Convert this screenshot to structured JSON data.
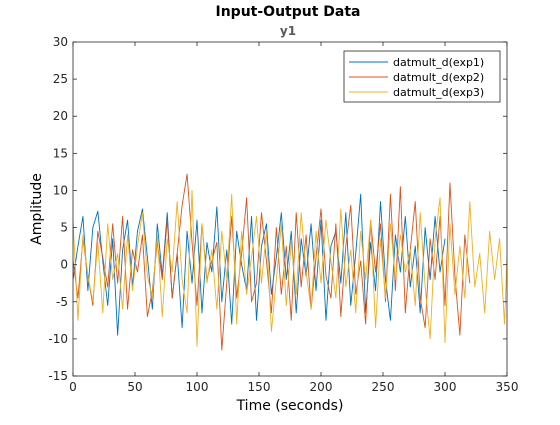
{
  "chart_data": {
    "type": "line",
    "title": "Input-Output Data",
    "subtitle": "y1",
    "xlabel": "Time (seconds)",
    "ylabel": "Amplitude",
    "xlim": [
      0,
      350
    ],
    "ylim": [
      -15,
      30
    ],
    "xticks": [
      0,
      50,
      100,
      150,
      200,
      250,
      300,
      350
    ],
    "yticks": [
      -15,
      -10,
      -5,
      0,
      5,
      10,
      15,
      20,
      25,
      30
    ],
    "grid": false,
    "legend_position": "top-right",
    "series": [
      {
        "name": "datmult_d(exp1)",
        "color": "#0072bd",
        "x": [
          0,
          4,
          8,
          12,
          16,
          20,
          24,
          28,
          32,
          36,
          40,
          44,
          48,
          52,
          56,
          60,
          64,
          68,
          72,
          76,
          80,
          84,
          88,
          92,
          96,
          100,
          104,
          108,
          112,
          116,
          120,
          124,
          128,
          132,
          136,
          140,
          144,
          148,
          152,
          156,
          160,
          164,
          168,
          172,
          176,
          180,
          184,
          188,
          192,
          196,
          200,
          204,
          208,
          212,
          216,
          220,
          224,
          228,
          232,
          236,
          240,
          244,
          248,
          252,
          256,
          260,
          264,
          268,
          272,
          276,
          280,
          284,
          288,
          292,
          296,
          300
        ],
        "values": [
          -2.0,
          2.5,
          6.5,
          -3.5,
          5.0,
          7.2,
          0.5,
          -5.5,
          3.5,
          -9.5,
          2.0,
          6.0,
          -3.0,
          4.5,
          7.5,
          1.0,
          -6.0,
          5.5,
          -1.5,
          7.0,
          -4.5,
          1.5,
          -8.5,
          4.5,
          -2.5,
          6.0,
          -6.5,
          3.0,
          -1.0,
          7.8,
          -5.0,
          2.0,
          -8.0,
          4.5,
          0.0,
          -3.5,
          6.5,
          -7.5,
          2.5,
          5.5,
          -4.0,
          1.0,
          7.0,
          -2.0,
          4.5,
          -6.5,
          3.5,
          -1.5,
          5.5,
          -3.5,
          6.0,
          -7.5,
          2.5,
          4.5,
          -2.5,
          7.0,
          -5.5,
          1.5,
          9.5,
          -6.5,
          3.0,
          -3.5,
          8.5,
          -2.0,
          -7.5,
          4.0,
          -1.0,
          6.5,
          -3.0,
          2.5,
          -6.5,
          5.0,
          -2.0,
          6.5,
          -1.0,
          3.5
        ]
      },
      {
        "name": "datmult_d(exp2)",
        "color": "#d95319",
        "x": [
          0,
          4,
          8,
          12,
          16,
          20,
          24,
          28,
          32,
          36,
          40,
          44,
          48,
          52,
          56,
          60,
          64,
          68,
          72,
          76,
          80,
          84,
          88,
          92,
          96,
          100,
          104,
          108,
          112,
          116,
          120,
          124,
          128,
          132,
          136,
          140,
          144,
          148,
          152,
          156,
          160,
          164,
          168,
          172,
          176,
          180,
          184,
          188,
          192,
          196,
          200,
          204,
          208,
          212,
          216,
          220,
          224,
          228,
          232,
          236,
          240,
          244,
          248,
          252,
          256,
          260,
          264,
          268,
          272,
          276,
          280,
          284,
          288,
          292,
          296,
          300,
          304,
          308,
          312,
          316,
          320
        ],
        "values": [
          0.5,
          -4.5,
          3.5,
          -1.5,
          -5.5,
          4.5,
          1.0,
          -3.0,
          5.5,
          -2.5,
          6.5,
          -6.0,
          2.0,
          -1.0,
          4.0,
          -7.0,
          -3.5,
          3.0,
          -2.0,
          6.0,
          -4.5,
          1.5,
          8.0,
          12.2,
          3.0,
          -5.5,
          5.5,
          -2.0,
          0.5,
          3.0,
          -11.5,
          -2.5,
          6.5,
          -4.5,
          1.5,
          9.0,
          -5.0,
          -2.5,
          7.0,
          0.5,
          -6.5,
          5.0,
          -4.0,
          2.5,
          -7.5,
          7.0,
          -3.0,
          4.0,
          -6.0,
          1.0,
          7.5,
          -1.5,
          -4.5,
          5.5,
          -7.0,
          2.5,
          8.0,
          -4.0,
          0.5,
          -8.0,
          6.0,
          -1.0,
          5.5,
          -5.0,
          9.5,
          -3.5,
          10.5,
          -6.5,
          2.0,
          8.5,
          -4.5,
          -8.5,
          3.5,
          -2.0,
          6.5,
          -5.5,
          11.0,
          -1.5,
          -9.5,
          4.0,
          -2.5
        ]
      },
      {
        "name": "datmult_d(exp3)",
        "color": "#edb120",
        "x": [
          0,
          4,
          8,
          12,
          16,
          20,
          24,
          28,
          32,
          36,
          40,
          44,
          48,
          52,
          56,
          60,
          64,
          68,
          72,
          76,
          80,
          84,
          88,
          92,
          96,
          100,
          104,
          108,
          112,
          116,
          120,
          124,
          128,
          132,
          136,
          140,
          144,
          148,
          152,
          156,
          160,
          164,
          168,
          172,
          176,
          180,
          184,
          188,
          192,
          196,
          200,
          204,
          208,
          212,
          216,
          220,
          224,
          228,
          232,
          236,
          240,
          244,
          248,
          252,
          256,
          260,
          264,
          268,
          272,
          276,
          280,
          284,
          288,
          292,
          296,
          300,
          304,
          308,
          312,
          316,
          320,
          324,
          328,
          332,
          336,
          340,
          344,
          348,
          350
        ],
        "values": [
          6.0,
          -7.5,
          4.0,
          -1.5,
          -5.0,
          3.0,
          -6.5,
          5.5,
          -2.0,
          1.5,
          -6.0,
          4.0,
          -3.5,
          2.5,
          7.0,
          -1.5,
          -4.5,
          4.0,
          -7.0,
          3.5,
          -1.0,
          8.5,
          -2.0,
          -6.5,
          10.0,
          -11.0,
          5.5,
          -2.5,
          2.0,
          -6.0,
          4.5,
          -2.0,
          9.5,
          -8.0,
          4.5,
          -4.0,
          1.0,
          6.5,
          -2.5,
          4.5,
          -9.0,
          -2.0,
          5.5,
          -5.5,
          3.0,
          -4.0,
          7.0,
          -1.0,
          -6.0,
          4.5,
          -2.5,
          6.0,
          0.5,
          -4.5,
          7.5,
          -3.0,
          2.0,
          -6.5,
          4.5,
          -2.0,
          6.0,
          -8.5,
          3.5,
          -4.5,
          5.5,
          -2.0,
          4.0,
          -1.0,
          2.0,
          -5.5,
          7.0,
          -3.0,
          -10.0,
          3.5,
          9.0,
          -10.5,
          5.5,
          -4.0,
          2.5,
          -4.5,
          8.5,
          -3.0,
          1.5,
          -6.5,
          4.5,
          -2.0,
          3.5,
          -8.0,
          1.0
        ]
      }
    ]
  }
}
